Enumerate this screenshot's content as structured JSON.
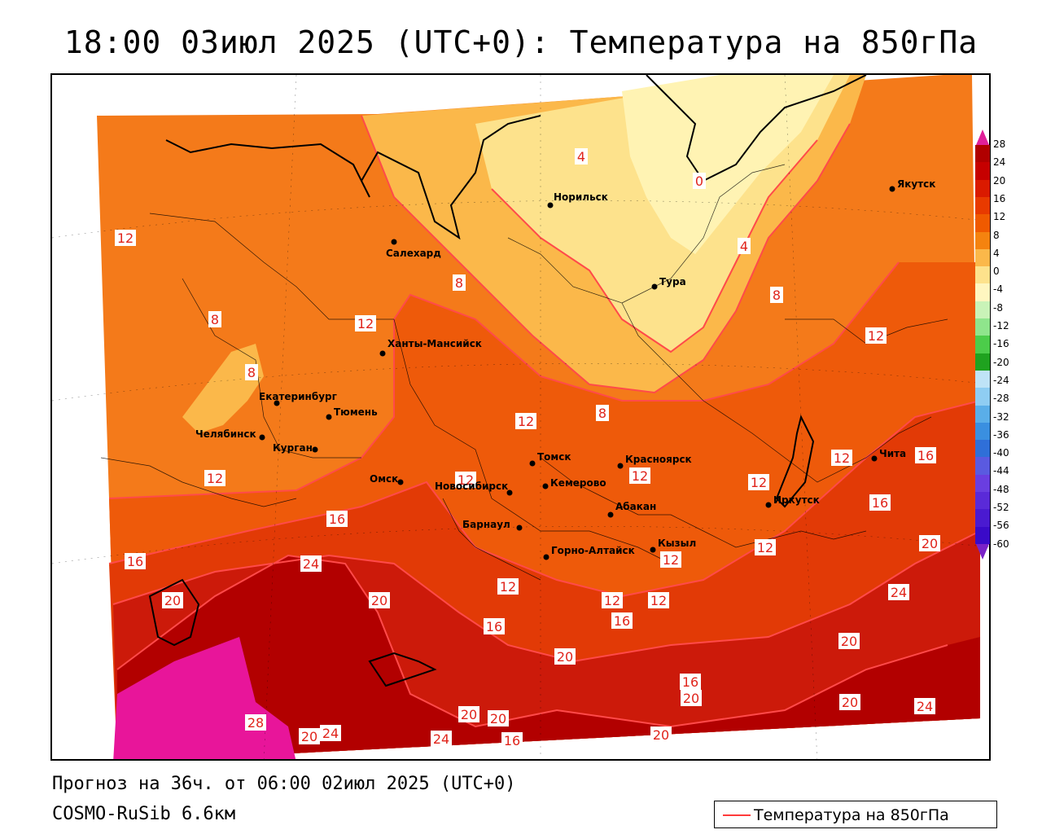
{
  "title": "18:00 03июл 2025 (UTC+0): Температура на 850гПа",
  "footer": {
    "forecast": "Прогноз на 36ч. от 06:00 02июл 2025 (UTC+0)",
    "model": "COSMO-RuSib 6.6км"
  },
  "legend": {
    "label": "Температура на 850гПа",
    "line_color": "#ff3a3a"
  },
  "scale": {
    "labels": [
      "28",
      "24",
      "20",
      "16",
      "12",
      "8",
      "4",
      "0",
      "-4",
      "-8",
      "-12",
      "-16",
      "-20",
      "-24",
      "-28",
      "-32",
      "-36",
      "-40",
      "-44",
      "-48",
      "-52",
      "-56",
      "-60"
    ],
    "colors": [
      "#b00000",
      "#c60000",
      "#da1a00",
      "#e83a00",
      "#f05a00",
      "#f5830f",
      "#fbb84a",
      "#fde28c",
      "#fff6c0",
      "#c9f3b8",
      "#8fe58c",
      "#4ccc4a",
      "#1fa21f",
      "#bfe3f7",
      "#8fcdf2",
      "#5aaee8",
      "#3a8fe0",
      "#2f6fd8",
      "#5a5ae0",
      "#6a3ee0",
      "#5a2ad8",
      "#4a1ad0",
      "#3a0ac8"
    ],
    "top_arrow_color": "#e0209a",
    "bottom_arrow_color": "#7a22c8"
  },
  "isotherm_labels": [
    "0",
    "4",
    "8",
    "12",
    "16",
    "20",
    "24",
    "28"
  ],
  "cities": [
    {
      "name": "Норильск"
    },
    {
      "name": "Якутск"
    },
    {
      "name": "Салехард"
    },
    {
      "name": "Тура"
    },
    {
      "name": "Ханты-Мансийск"
    },
    {
      "name": "Екатеринбург"
    },
    {
      "name": "Тюмень"
    },
    {
      "name": "Челябинск"
    },
    {
      "name": "Курган"
    },
    {
      "name": "Омск"
    },
    {
      "name": "Новосибирск"
    },
    {
      "name": "Томск"
    },
    {
      "name": "Кемерово"
    },
    {
      "name": "Красноярск"
    },
    {
      "name": "Абакан"
    },
    {
      "name": "Барнаул"
    },
    {
      "name": "Горно-Алтайск"
    },
    {
      "name": "Кызыл"
    },
    {
      "name": "Иркутск"
    },
    {
      "name": "Чита"
    }
  ],
  "colors": {
    "zone_8_12": "#f47a1a",
    "zone_12_16": "#ee5a0a",
    "zone_16_20": "#e23a06",
    "zone_20_24": "#cc1a0a",
    "zone_24_28": "#b20000",
    "zone_28": "#e8159a",
    "zone_4_8": "#fbb84a",
    "zone_0_4": "#fde28c",
    "zone_cold": "#fff3b3",
    "isotherm": "#ff4a4a"
  }
}
